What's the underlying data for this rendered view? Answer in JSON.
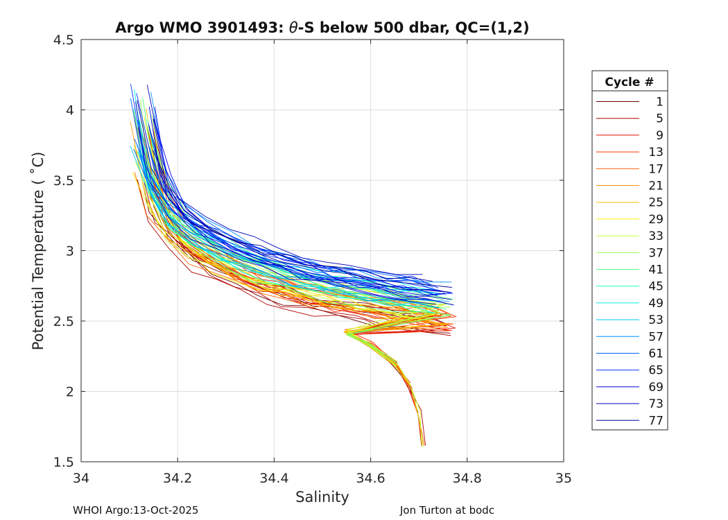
{
  "chart_data": {
    "type": "line",
    "title": "Argo WMO 3901493: θ-S below 500 dbar,  QC=(1,2)",
    "title_prefix": "Argo WMO 3901493: ",
    "title_theta": "θ",
    "title_suffix": "-S below 500 dbar,  QC=(1,2)",
    "xlabel": "Salinity",
    "ylabel": "Potential Temperature ( ˚C)",
    "xlim": [
      34,
      35
    ],
    "ylim": [
      1.5,
      4.5
    ],
    "xticks": [
      34,
      34.2,
      34.4,
      34.6,
      34.8,
      35
    ],
    "xtick_labels": [
      "34",
      "34.2",
      "34.4",
      "34.6",
      "34.8",
      "35"
    ],
    "yticks": [
      1.5,
      2,
      2.5,
      3,
      3.5,
      4,
      4.5
    ],
    "ytick_labels": [
      "1.5",
      "2",
      "2.5",
      "3",
      "3.5",
      "4",
      "4.5"
    ],
    "grid": true,
    "legend": {
      "title": "Cycle #",
      "placement": "outside-right",
      "entries": [
        {
          "label": "1",
          "color": "#6e0000"
        },
        {
          "label": "5",
          "color": "#b00000"
        },
        {
          "label": "9",
          "color": "#e01000"
        },
        {
          "label": "13",
          "color": "#ff3000"
        },
        {
          "label": "17",
          "color": "#ff6000"
        },
        {
          "label": "21",
          "color": "#ff9000"
        },
        {
          "label": "25",
          "color": "#ffc000"
        },
        {
          "label": "29",
          "color": "#f5f000"
        },
        {
          "label": "33",
          "color": "#c8ff30"
        },
        {
          "label": "37",
          "color": "#90ff50"
        },
        {
          "label": "41",
          "color": "#50ff80"
        },
        {
          "label": "45",
          "color": "#20ffb0"
        },
        {
          "label": "49",
          "color": "#00f0e0"
        },
        {
          "label": "53",
          "color": "#00c8ff"
        },
        {
          "label": "57",
          "color": "#0090ff"
        },
        {
          "label": "61",
          "color": "#0060ff"
        },
        {
          "label": "65",
          "color": "#0030ff"
        },
        {
          "label": "69",
          "color": "#0000e8"
        },
        {
          "label": "73",
          "color": "#0000c0"
        },
        {
          "label": "77",
          "color": "#000090"
        }
      ]
    },
    "series_shape": {
      "salinity": [
        34.13,
        34.16,
        34.2,
        34.25,
        34.3,
        34.35,
        34.4,
        34.45,
        34.5,
        34.55,
        34.6,
        34.65,
        34.7,
        34.75
      ],
      "temperature": [
        3.7,
        3.35,
        3.15,
        3.02,
        2.93,
        2.86,
        2.8,
        2.75,
        2.71,
        2.68,
        2.65,
        2.62,
        2.6,
        2.57
      ]
    },
    "deep_branch": {
      "salinity": [
        34.55,
        34.6,
        34.65,
        34.68,
        34.7,
        34.71
      ],
      "temperature": [
        2.42,
        2.33,
        2.2,
        2.05,
        1.85,
        1.6
      ]
    }
  },
  "footer": {
    "left": "WHOI Argo:13-Oct-2025",
    "right": "Jon Turton at bodc"
  }
}
